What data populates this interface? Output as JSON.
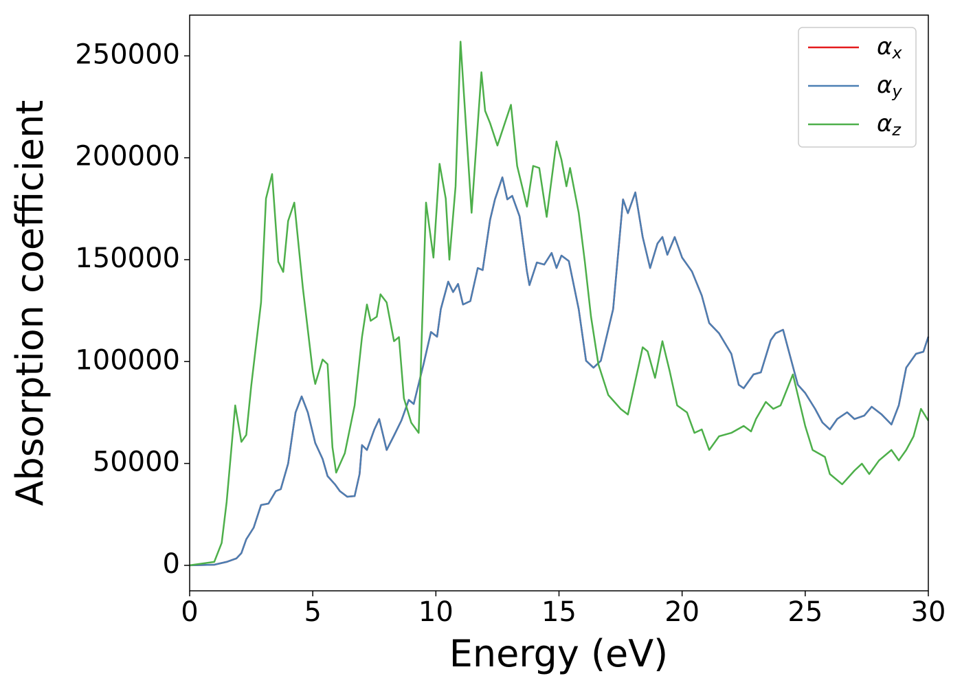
{
  "chart_data": {
    "type": "line",
    "xlabel": "Energy (eV)",
    "ylabel": "Absorption coefficient",
    "xlim": [
      0,
      30
    ],
    "xticks": [
      0,
      5,
      10,
      15,
      20,
      25,
      30
    ],
    "ylim": [
      -12500,
      270000
    ],
    "yticks": [
      0,
      50000,
      100000,
      150000,
      200000,
      250000
    ],
    "legend": "upper right",
    "series": [
      {
        "name": "αx",
        "color": "#e41a1c",
        "x": [
          0,
          1.0,
          1.5,
          1.9,
          2.1,
          2.3,
          2.6,
          2.9,
          3.2,
          3.5,
          3.7,
          4.0,
          4.3,
          4.55,
          4.8,
          5.1,
          5.4,
          5.6,
          5.9,
          6.1,
          6.4,
          6.7,
          6.9,
          7.0,
          7.2,
          7.5,
          7.7,
          8.0,
          8.3,
          8.6,
          8.9,
          9.1,
          9.5,
          9.8,
          10.05,
          10.2,
          10.5,
          10.7,
          10.9,
          11.1,
          11.4,
          11.7,
          11.9,
          12.2,
          12.4,
          12.7,
          12.9,
          13.1,
          13.4,
          13.7,
          13.8,
          14.1,
          14.4,
          14.7,
          14.9,
          15.1,
          15.4,
          15.8,
          16.1,
          16.4,
          16.7,
          17.2,
          17.6,
          17.8,
          18.1,
          18.4,
          18.7,
          19.0,
          19.2,
          19.4,
          19.7,
          20.0,
          20.4,
          20.8,
          21.1,
          21.5,
          22.0,
          22.3,
          22.5,
          22.9,
          23.2,
          23.6,
          23.8,
          24.1,
          24.4,
          24.7,
          25.0,
          25.4,
          25.7,
          26.0,
          26.3,
          26.7,
          27.0,
          27.4,
          27.7,
          28.1,
          28.5,
          28.8,
          29.1,
          29.5,
          29.8,
          30.0
        ],
        "values": [
          0,
          300,
          1700,
          3400,
          6000,
          12800,
          18500,
          29600,
          30300,
          36400,
          37400,
          49900,
          75000,
          82900,
          75000,
          60000,
          52200,
          43800,
          39800,
          36400,
          33700,
          34000,
          44800,
          59000,
          56600,
          66700,
          71800,
          56600,
          63700,
          71100,
          81200,
          79200,
          98700,
          114500,
          112200,
          125700,
          139200,
          134100,
          138100,
          128000,
          129700,
          145900,
          144900,
          169500,
          179600,
          190400,
          179600,
          181300,
          171200,
          144200,
          137500,
          148600,
          147600,
          153300,
          145900,
          152000,
          149300,
          125700,
          100400,
          97000,
          100400,
          125700,
          179600,
          172800,
          183000,
          161100,
          145900,
          157900,
          161100,
          152400,
          161100,
          151000,
          144200,
          132400,
          118900,
          113900,
          103800,
          88600,
          86900,
          93700,
          94700,
          110500,
          113900,
          115600,
          102100,
          88600,
          84600,
          76800,
          70100,
          66700,
          71800,
          75100,
          71800,
          73500,
          77800,
          74100,
          69100,
          78500,
          97000,
          103800,
          104800,
          112200
        ]
      },
      {
        "name": "αy",
        "color": "#4a7fb3",
        "x": [
          0,
          1.0,
          1.5,
          1.9,
          2.1,
          2.3,
          2.6,
          2.9,
          3.2,
          3.5,
          3.7,
          4.0,
          4.3,
          4.55,
          4.8,
          5.1,
          5.4,
          5.6,
          5.9,
          6.1,
          6.4,
          6.7,
          6.9,
          7.0,
          7.2,
          7.5,
          7.7,
          8.0,
          8.3,
          8.6,
          8.9,
          9.1,
          9.5,
          9.8,
          10.05,
          10.2,
          10.5,
          10.7,
          10.9,
          11.1,
          11.4,
          11.7,
          11.9,
          12.2,
          12.4,
          12.7,
          12.9,
          13.1,
          13.4,
          13.7,
          13.8,
          14.1,
          14.4,
          14.7,
          14.9,
          15.1,
          15.4,
          15.8,
          16.1,
          16.4,
          16.7,
          17.2,
          17.6,
          17.8,
          18.1,
          18.4,
          18.7,
          19.0,
          19.2,
          19.4,
          19.7,
          20.0,
          20.4,
          20.8,
          21.1,
          21.5,
          22.0,
          22.3,
          22.5,
          22.9,
          23.2,
          23.6,
          23.8,
          24.1,
          24.4,
          24.7,
          25.0,
          25.4,
          25.7,
          26.0,
          26.3,
          26.7,
          27.0,
          27.4,
          27.7,
          28.1,
          28.5,
          28.8,
          29.1,
          29.5,
          29.8,
          30.0
        ],
        "values": [
          0,
          300,
          1700,
          3400,
          6000,
          12800,
          18500,
          29600,
          30300,
          36400,
          37400,
          49900,
          75000,
          82900,
          75000,
          60000,
          52200,
          43800,
          39800,
          36400,
          33700,
          34000,
          44800,
          59000,
          56600,
          66700,
          71800,
          56600,
          63700,
          71100,
          81200,
          79200,
          98700,
          114500,
          112200,
          125700,
          139200,
          134100,
          138100,
          128000,
          129700,
          145900,
          144900,
          169500,
          179600,
          190400,
          179600,
          181300,
          171200,
          144200,
          137500,
          148600,
          147600,
          153300,
          145900,
          152000,
          149300,
          125700,
          100400,
          97000,
          100400,
          125700,
          179600,
          172800,
          183000,
          161100,
          145900,
          157900,
          161100,
          152400,
          161100,
          151000,
          144200,
          132400,
          118900,
          113900,
          103800,
          88600,
          86900,
          93700,
          94700,
          110500,
          113900,
          115600,
          102100,
          88600,
          84600,
          76800,
          70100,
          66700,
          71800,
          75100,
          71800,
          73500,
          77800,
          74100,
          69100,
          78500,
          97000,
          103800,
          104800,
          112200
        ]
      },
      {
        "name": "αz",
        "color": "#4daf4a",
        "x": [
          0,
          1.0,
          1.3,
          1.5,
          1.85,
          2.1,
          2.3,
          2.5,
          2.9,
          3.1,
          3.35,
          3.6,
          3.8,
          4.0,
          4.25,
          4.6,
          5.0,
          5.1,
          5.4,
          5.6,
          5.8,
          5.95,
          6.3,
          6.7,
          7.0,
          7.2,
          7.35,
          7.6,
          7.75,
          8.0,
          8.3,
          8.5,
          8.7,
          9.0,
          9.3,
          9.6,
          9.9,
          10.15,
          10.4,
          10.55,
          10.8,
          11.0,
          11.2,
          11.45,
          11.85,
          12.0,
          12.2,
          12.5,
          12.8,
          13.05,
          13.3,
          13.5,
          13.7,
          13.95,
          14.2,
          14.5,
          14.9,
          15.1,
          15.3,
          15.45,
          15.8,
          16.05,
          16.3,
          16.6,
          17.0,
          17.5,
          17.8,
          18.0,
          18.4,
          18.6,
          18.9,
          19.2,
          19.5,
          19.8,
          20.2,
          20.5,
          20.8,
          21.1,
          21.5,
          22.0,
          22.5,
          22.8,
          23.0,
          23.4,
          23.7,
          24.0,
          24.5,
          25.0,
          25.3,
          25.8,
          26.0,
          26.5,
          27.0,
          27.3,
          27.6,
          28.0,
          28.5,
          28.8,
          29.1,
          29.4,
          29.7,
          30.0
        ],
        "values": [
          0,
          1700,
          11000,
          31000,
          78500,
          60600,
          64000,
          88000,
          129000,
          180000,
          192000,
          149000,
          144000,
          169000,
          178000,
          136000,
          95000,
          89000,
          101000,
          98700,
          58000,
          45500,
          55000,
          78500,
          112000,
          128000,
          120000,
          122000,
          133000,
          129000,
          110000,
          112000,
          82000,
          70000,
          65000,
          178000,
          151000,
          197000,
          180000,
          150000,
          186000,
          257000,
          220000,
          173000,
          242000,
          223000,
          217000,
          206000,
          217000,
          226000,
          196000,
          186000,
          176000,
          196000,
          195000,
          171000,
          208000,
          199000,
          186000,
          195000,
          173000,
          149000,
          122000,
          98700,
          83600,
          76800,
          74000,
          85000,
          107000,
          105000,
          92000,
          110000,
          95000,
          78500,
          75000,
          65000,
          66700,
          56600,
          63300,
          65000,
          68400,
          65700,
          71800,
          80200,
          76800,
          78500,
          93700,
          68400,
          56600,
          53200,
          44800,
          39800,
          46500,
          49900,
          44800,
          51500,
          56600,
          51500,
          56600,
          63300,
          76800,
          71000
        ]
      }
    ]
  }
}
